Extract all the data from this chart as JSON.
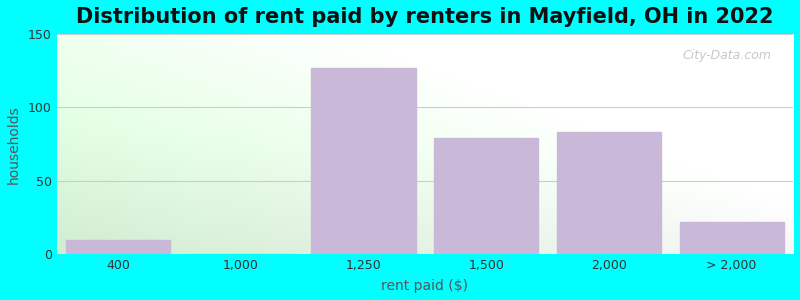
{
  "title": "Distribution of rent paid by renters in Mayfield, OH in 2022",
  "xlabel": "rent paid ($)",
  "ylabel": "households",
  "bar_labels": [
    "400",
    "1,000",
    "1,250",
    "1,500",
    "2,000",
    "> 2,000"
  ],
  "bar_values": [
    10,
    0,
    127,
    79,
    83,
    22
  ],
  "bar_color": "#C9B8D8",
  "bar_edgecolor": "#C9B8D8",
  "ylim": [
    0,
    150
  ],
  "yticks": [
    0,
    50,
    100,
    150
  ],
  "background_outer": "#00FFFF",
  "grid_color": "#cccccc",
  "title_fontsize": 15,
  "axis_label_fontsize": 10,
  "tick_fontsize": 9,
  "watermark_text": "City-Data.com"
}
